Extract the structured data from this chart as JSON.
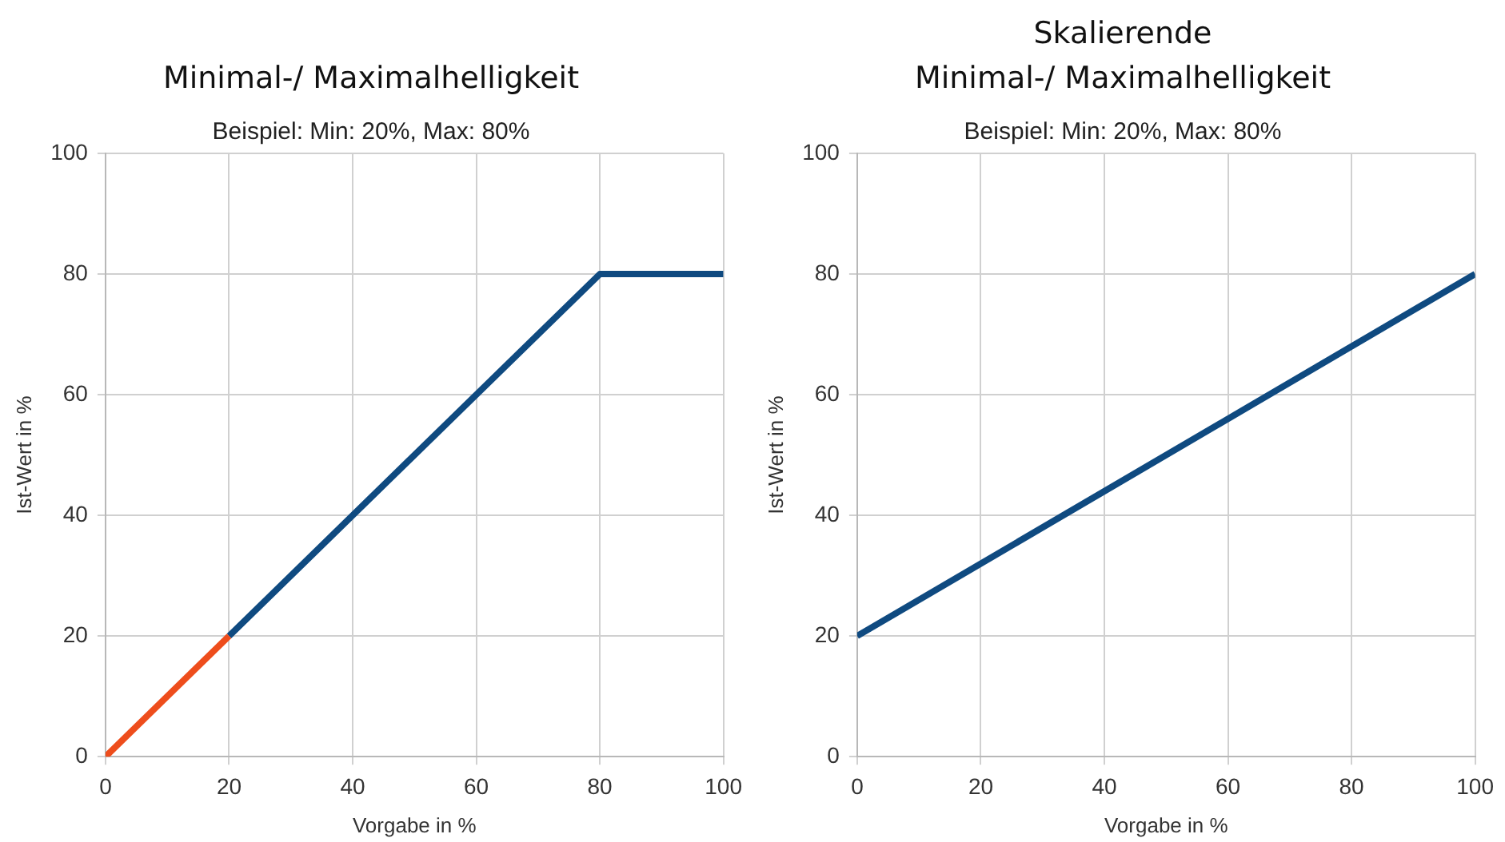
{
  "chart_data": [
    {
      "type": "line",
      "title": "Minimal-/ Maximalhelligkeit",
      "subtitle": "Beispiel: Min: 20%, Max: 80%",
      "xlabel": "Vorgabe in %",
      "ylabel": "Ist-Wert in %",
      "xlim": [
        0,
        100
      ],
      "xticks": [
        0,
        20,
        40,
        60,
        80,
        100
      ],
      "ylim": [
        0,
        100
      ],
      "yticks": [
        0,
        20,
        40,
        60,
        80,
        100
      ],
      "grid": true,
      "legend": false,
      "marker": "none",
      "line_style": "solid",
      "series": [
        {
          "color": "#ee4d1c",
          "x": [
            0,
            20
          ],
          "values": [
            0,
            20
          ]
        },
        {
          "color": "#0f4a80",
          "x": [
            20,
            80,
            100
          ],
          "values": [
            20,
            80,
            80
          ]
        }
      ]
    },
    {
      "type": "line",
      "title": "Skalierende\nMinimal-/ Maximalhelligkeit",
      "subtitle": "Beispiel: Min: 20%, Max: 80%",
      "xlabel": "Vorgabe in %",
      "ylabel": "Ist-Wert in %",
      "xlim": [
        0,
        100
      ],
      "xticks": [
        0,
        20,
        40,
        60,
        80,
        100
      ],
      "ylim": [
        0,
        100
      ],
      "yticks": [
        0,
        20,
        40,
        60,
        80,
        100
      ],
      "grid": true,
      "legend": false,
      "marker": "none",
      "line_style": "solid",
      "series": [
        {
          "color": "#0f4a80",
          "x": [
            0,
            100
          ],
          "values": [
            20,
            80
          ]
        }
      ]
    }
  ]
}
